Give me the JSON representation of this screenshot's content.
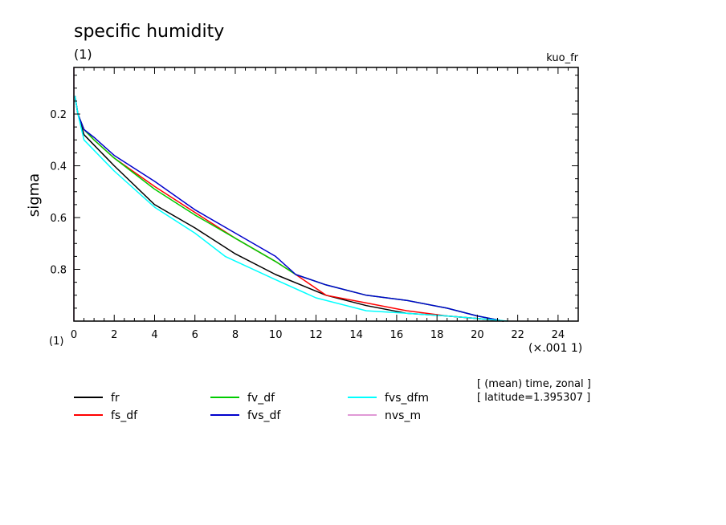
{
  "chart_data": {
    "type": "line",
    "title": "specific humidity",
    "subtitle": "(1)",
    "run_label": "kuo_fr",
    "ylabel": "sigma",
    "yunit": "(1)",
    "xunit": "(×.001 1)",
    "x_scale_note": "values in units of 0.001",
    "xlim": [
      0,
      25
    ],
    "ylim": [
      1.0,
      0.02
    ],
    "y_inverted": true,
    "xticks": [
      0,
      2,
      4,
      6,
      8,
      10,
      12,
      14,
      16,
      18,
      20,
      22,
      24
    ],
    "xtick_labels": [
      "0",
      "2",
      "4",
      "6",
      "8",
      "10",
      "12",
      "14",
      "16",
      "18",
      "20",
      "22",
      "24"
    ],
    "yticks": [
      0.2,
      0.4,
      0.6,
      0.8
    ],
    "ytick_labels": [
      "0.2",
      "0.4",
      "0.6",
      "0.8"
    ],
    "grid": false,
    "legend_placement": "bottom",
    "notes": [
      "[ (mean) time, zonal ]",
      "[ latitude=1.395307 ]"
    ],
    "series": [
      {
        "name": "fr",
        "color": "#000000",
        "x": [
          0.05,
          0.2,
          0.5,
          1.0,
          2.0,
          4.0,
          6.0,
          8.0,
          10.0,
          12.5,
          14.5,
          16.5,
          18.5,
          20.0,
          21.3
        ],
        "y": [
          0.13,
          0.2,
          0.28,
          0.32,
          0.4,
          0.55,
          0.64,
          0.74,
          0.82,
          0.9,
          0.94,
          0.97,
          0.98,
          0.99,
          1.0
        ]
      },
      {
        "name": "fs_df",
        "color": "#ff0000",
        "x": [
          0.05,
          0.2,
          0.5,
          1.0,
          2.0,
          4.0,
          6.0,
          8.0,
          10.0,
          11.0,
          12.5,
          14.5,
          16.5,
          18.5,
          20.0,
          21.3
        ],
        "y": [
          0.13,
          0.2,
          0.26,
          0.3,
          0.37,
          0.48,
          0.58,
          0.68,
          0.77,
          0.82,
          0.9,
          0.93,
          0.96,
          0.98,
          0.99,
          1.0
        ]
      },
      {
        "name": "fv_df",
        "color": "#00cc00",
        "x": [
          0.05,
          0.2,
          0.5,
          1.0,
          2.0,
          4.0,
          6.0,
          8.0,
          10.0,
          11.0,
          12.5,
          14.5,
          16.5,
          18.5,
          20.0,
          21.3
        ],
        "y": [
          0.13,
          0.2,
          0.26,
          0.3,
          0.37,
          0.49,
          0.59,
          0.68,
          0.77,
          0.82,
          0.86,
          0.9,
          0.92,
          0.95,
          0.98,
          1.0
        ]
      },
      {
        "name": "fvs_df",
        "color": "#0000cc",
        "x": [
          0.05,
          0.2,
          0.5,
          1.0,
          2.0,
          4.0,
          6.0,
          8.0,
          10.0,
          11.0,
          12.5,
          14.5,
          16.5,
          18.5,
          20.0,
          21.3
        ],
        "y": [
          0.13,
          0.2,
          0.26,
          0.29,
          0.36,
          0.46,
          0.57,
          0.66,
          0.75,
          0.82,
          0.86,
          0.9,
          0.92,
          0.95,
          0.98,
          1.0
        ]
      },
      {
        "name": "fvs_dfm",
        "color": "#00ffff",
        "x": [
          0.05,
          0.2,
          0.5,
          1.0,
          2.0,
          4.0,
          6.0,
          7.5,
          10.0,
          12.0,
          14.5,
          16.5,
          18.5,
          20.0,
          21.5
        ],
        "y": [
          0.13,
          0.2,
          0.3,
          0.34,
          0.42,
          0.56,
          0.66,
          0.75,
          0.84,
          0.91,
          0.96,
          0.97,
          0.98,
          0.99,
          1.0
        ]
      },
      {
        "name": "nvs_m",
        "color": "#e099d6",
        "x": [
          0.0,
          0.0
        ],
        "y": [
          0.02,
          1.0
        ]
      }
    ]
  }
}
